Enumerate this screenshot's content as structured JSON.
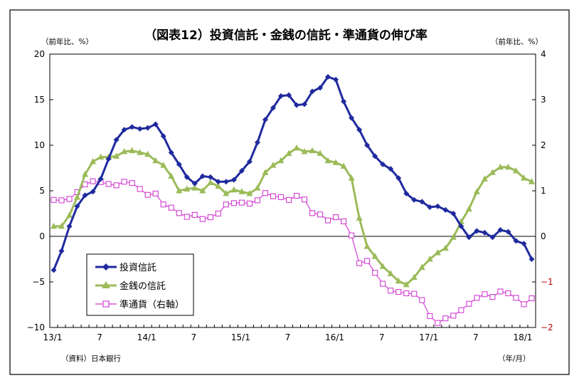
{
  "chart_data": {
    "type": "line",
    "title": "（図表12）投資信託・金銭の信託・準通貨の伸び率",
    "y_left_unit": "（前年比、%）",
    "y_right_unit": "（前年比、%）",
    "x_unit": "（年/月）",
    "source": "（資料）日本銀行",
    "legend_placement": "bottom-left",
    "grid": false,
    "ylim_left": [
      -10,
      20
    ],
    "ylim_right": [
      -2,
      4
    ],
    "yticks_left": [
      "20",
      "15",
      "10",
      "5",
      "0",
      "−5",
      "−10"
    ],
    "yticks_right": [
      "4",
      "3",
      "2",
      "1",
      "0",
      "−1",
      "−2"
    ],
    "x_tick_labels": [
      {
        "i": 0,
        "label": "13/1"
      },
      {
        "i": 6,
        "label": "7"
      },
      {
        "i": 12,
        "label": "14/1"
      },
      {
        "i": 18,
        "label": "7"
      },
      {
        "i": 24,
        "label": "15/1"
      },
      {
        "i": 30,
        "label": "7"
      },
      {
        "i": 36,
        "label": "16/1"
      },
      {
        "i": 42,
        "label": "7"
      },
      {
        "i": 48,
        "label": "17/1"
      },
      {
        "i": 54,
        "label": "7"
      },
      {
        "i": 60,
        "label": "18/1"
      }
    ],
    "x": [
      "13/1",
      "13/2",
      "13/3",
      "13/4",
      "13/5",
      "13/6",
      "13/7",
      "13/8",
      "13/9",
      "13/10",
      "13/11",
      "13/12",
      "14/1",
      "14/2",
      "14/3",
      "14/4",
      "14/5",
      "14/6",
      "14/7",
      "14/8",
      "14/9",
      "14/10",
      "14/11",
      "14/12",
      "15/1",
      "15/2",
      "15/3",
      "15/4",
      "15/5",
      "15/6",
      "15/7",
      "15/8",
      "15/9",
      "15/10",
      "15/11",
      "15/12",
      "16/1",
      "16/2",
      "16/3",
      "16/4",
      "16/5",
      "16/6",
      "16/7",
      "16/8",
      "16/9",
      "16/10",
      "16/11",
      "16/12",
      "17/1",
      "17/2",
      "17/3",
      "17/4",
      "17/5",
      "17/6",
      "17/7",
      "17/8",
      "17/9",
      "17/10",
      "17/11",
      "17/12",
      "18/1",
      "18/2"
    ],
    "series": [
      {
        "name": "投資信託",
        "axis": "left",
        "color": "#1f2a9e",
        "marker": "diamond",
        "values": [
          -3.7,
          -1.6,
          1.1,
          3.3,
          4.5,
          4.9,
          6.3,
          8.5,
          10.6,
          11.7,
          12.0,
          11.8,
          11.9,
          12.3,
          11.0,
          9.2,
          7.9,
          6.5,
          5.8,
          6.6,
          6.5,
          6.0,
          6.0,
          6.2,
          7.2,
          8.2,
          10.3,
          12.8,
          14.1,
          15.4,
          15.5,
          14.4,
          14.5,
          15.9,
          16.3,
          17.5,
          17.2,
          14.8,
          13.0,
          11.7,
          10.0,
          8.8,
          7.9,
          7.4,
          6.4,
          4.7,
          4.0,
          3.8,
          3.2,
          3.3,
          2.9,
          2.5,
          1.1,
          -0.1,
          0.6,
          0.4,
          -0.1,
          0.7,
          0.5,
          -0.5,
          -0.8,
          -2.5
        ]
      },
      {
        "name": "金銭の信託",
        "axis": "left",
        "color": "#9bbb59",
        "marker": "triangle",
        "values": [
          1.1,
          1.1,
          2.3,
          4.3,
          6.8,
          8.2,
          8.7,
          8.7,
          8.8,
          9.3,
          9.4,
          9.2,
          9.0,
          8.3,
          7.8,
          6.6,
          5.0,
          5.2,
          5.3,
          5.0,
          5.9,
          5.5,
          4.7,
          5.1,
          4.9,
          4.7,
          5.3,
          7.0,
          7.8,
          8.3,
          9.1,
          9.7,
          9.3,
          9.4,
          9.1,
          8.3,
          8.1,
          7.7,
          6.4,
          2.0,
          -1.1,
          -2.2,
          -3.3,
          -4.1,
          -4.9,
          -5.3,
          -4.5,
          -3.4,
          -2.5,
          -1.8,
          -1.3,
          -0.1,
          1.6,
          3.0,
          4.9,
          6.3,
          7.0,
          7.6,
          7.6,
          7.2,
          6.4,
          6.0
        ]
      },
      {
        "name": "準通貨（右軸）",
        "axis": "right",
        "color": "#d13fd1",
        "marker": "square-open",
        "values": [
          0.8,
          0.79,
          0.82,
          0.97,
          1.14,
          1.21,
          1.19,
          1.15,
          1.12,
          1.2,
          1.17,
          1.04,
          0.91,
          0.94,
          0.7,
          0.63,
          0.51,
          0.43,
          0.47,
          0.38,
          0.42,
          0.5,
          0.7,
          0.73,
          0.74,
          0.72,
          0.79,
          0.95,
          0.88,
          0.86,
          0.8,
          0.89,
          0.81,
          0.51,
          0.48,
          0.35,
          0.42,
          0.33,
          0.02,
          -0.59,
          -0.54,
          -0.8,
          -1.04,
          -1.19,
          -1.22,
          -1.25,
          -1.26,
          -1.4,
          -1.75,
          -1.9,
          -1.8,
          -1.74,
          -1.62,
          -1.48,
          -1.35,
          -1.27,
          -1.33,
          -1.21,
          -1.25,
          -1.35,
          -1.49,
          -1.36
        ]
      }
    ]
  }
}
